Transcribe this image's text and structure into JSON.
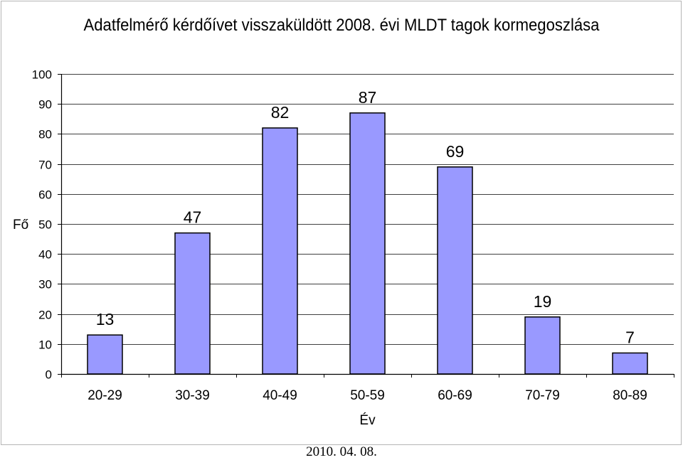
{
  "chart_data": {
    "type": "bar",
    "title": "Adatfelmérő kérdőívet visszaküldött 2008. évi MLDT tagok kormegoszlása",
    "xlabel": "Év",
    "ylabel": "Fő",
    "categories": [
      "20-29",
      "30-39",
      "40-49",
      "50-59",
      "60-69",
      "70-79",
      "80-89"
    ],
    "values": [
      13,
      47,
      82,
      87,
      69,
      19,
      7
    ],
    "ylim": [
      0,
      100
    ],
    "yticks": [
      0,
      10,
      20,
      30,
      40,
      50,
      60,
      70,
      80,
      90,
      100
    ],
    "grid": true,
    "legend": "none",
    "bar_color": "#9999ff",
    "bar_edge_color": "#000000",
    "grid_color": "#000000"
  },
  "footer": {
    "date": "2010. 04. 08."
  }
}
